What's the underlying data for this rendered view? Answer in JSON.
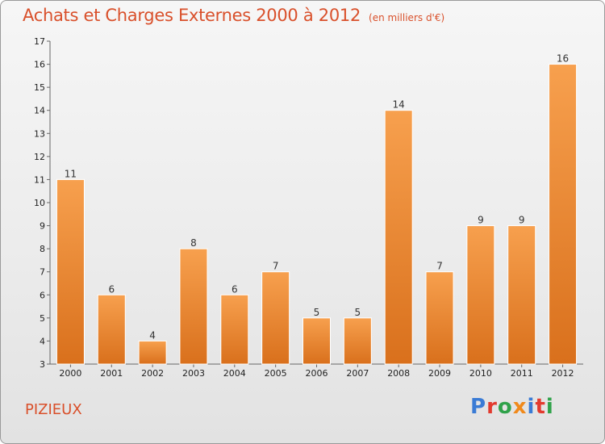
{
  "title": "Achats et Charges Externes 2000 à 2012",
  "subtitle": "(en milliers d'€)",
  "place": "PIZIEUX",
  "logo": {
    "p": "P",
    "r": "r",
    "o": "o",
    "x": "x",
    "i": "i",
    "t": "t",
    "i2": "i"
  },
  "colors": {
    "bar_top": "#f7a04e",
    "bar_bottom": "#d9701c",
    "title": "#d9502b"
  },
  "chart_data": {
    "type": "bar",
    "title": "Achats et Charges Externes 2000 à 2012",
    "subtitle": "(en milliers d'€)",
    "categories": [
      "2000",
      "2001",
      "2002",
      "2003",
      "2004",
      "2005",
      "2006",
      "2007",
      "2008",
      "2009",
      "2010",
      "2011",
      "2012"
    ],
    "values": [
      11,
      6,
      4,
      8,
      6,
      7,
      5,
      5,
      14,
      7,
      9,
      9,
      16
    ],
    "ylim": [
      3,
      17
    ],
    "yticks": [
      3,
      4,
      5,
      6,
      7,
      8,
      9,
      10,
      11,
      12,
      13,
      14,
      15,
      16,
      17
    ],
    "grid": false,
    "xlabel": "",
    "ylabel": ""
  }
}
